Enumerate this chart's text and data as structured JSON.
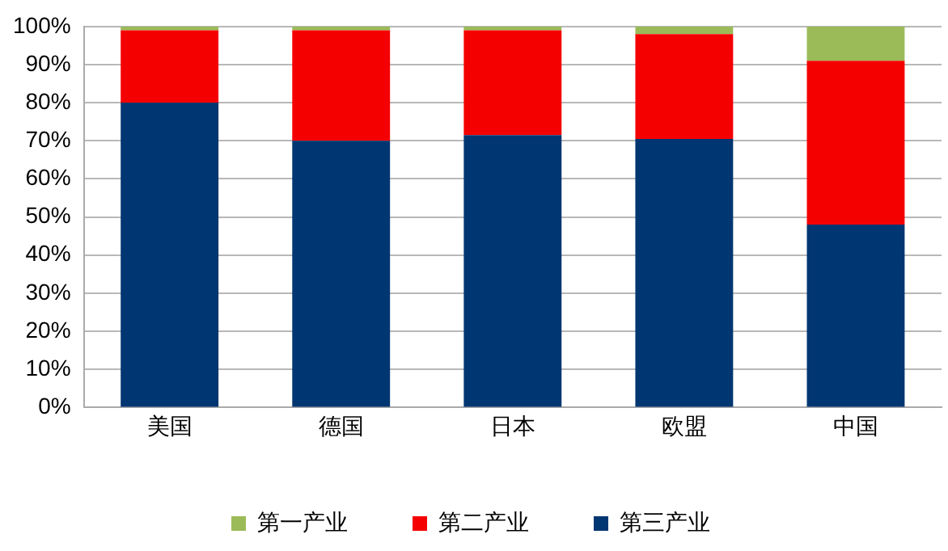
{
  "chart_data": {
    "type": "bar",
    "stacked": true,
    "categories": [
      "美国",
      "德国",
      "日本",
      "欧盟",
      "中国"
    ],
    "series": [
      {
        "name": "第三产业",
        "color": "#003671",
        "values": [
          80,
          70,
          71.5,
          70.5,
          48
        ]
      },
      {
        "name": "第二产业",
        "color": "#f50000",
        "values": [
          19,
          29,
          27.5,
          27.5,
          43
        ]
      },
      {
        "name": "第一产业",
        "color": "#9bbb59",
        "values": [
          1,
          1,
          1,
          2,
          9
        ]
      }
    ],
    "ylim": [
      0,
      100
    ],
    "yticks": [
      {
        "value": 0,
        "label": "0%"
      },
      {
        "value": 10,
        "label": "10%"
      },
      {
        "value": 20,
        "label": "20%"
      },
      {
        "value": 30,
        "label": "30%"
      },
      {
        "value": 40,
        "label": "40%"
      },
      {
        "value": 50,
        "label": "50%"
      },
      {
        "value": 60,
        "label": "60%"
      },
      {
        "value": 70,
        "label": "70%"
      },
      {
        "value": 80,
        "label": "80%"
      },
      {
        "value": 90,
        "label": "90%"
      },
      {
        "value": 100,
        "label": "100%"
      }
    ],
    "grid": "y",
    "legend": "bottom"
  }
}
